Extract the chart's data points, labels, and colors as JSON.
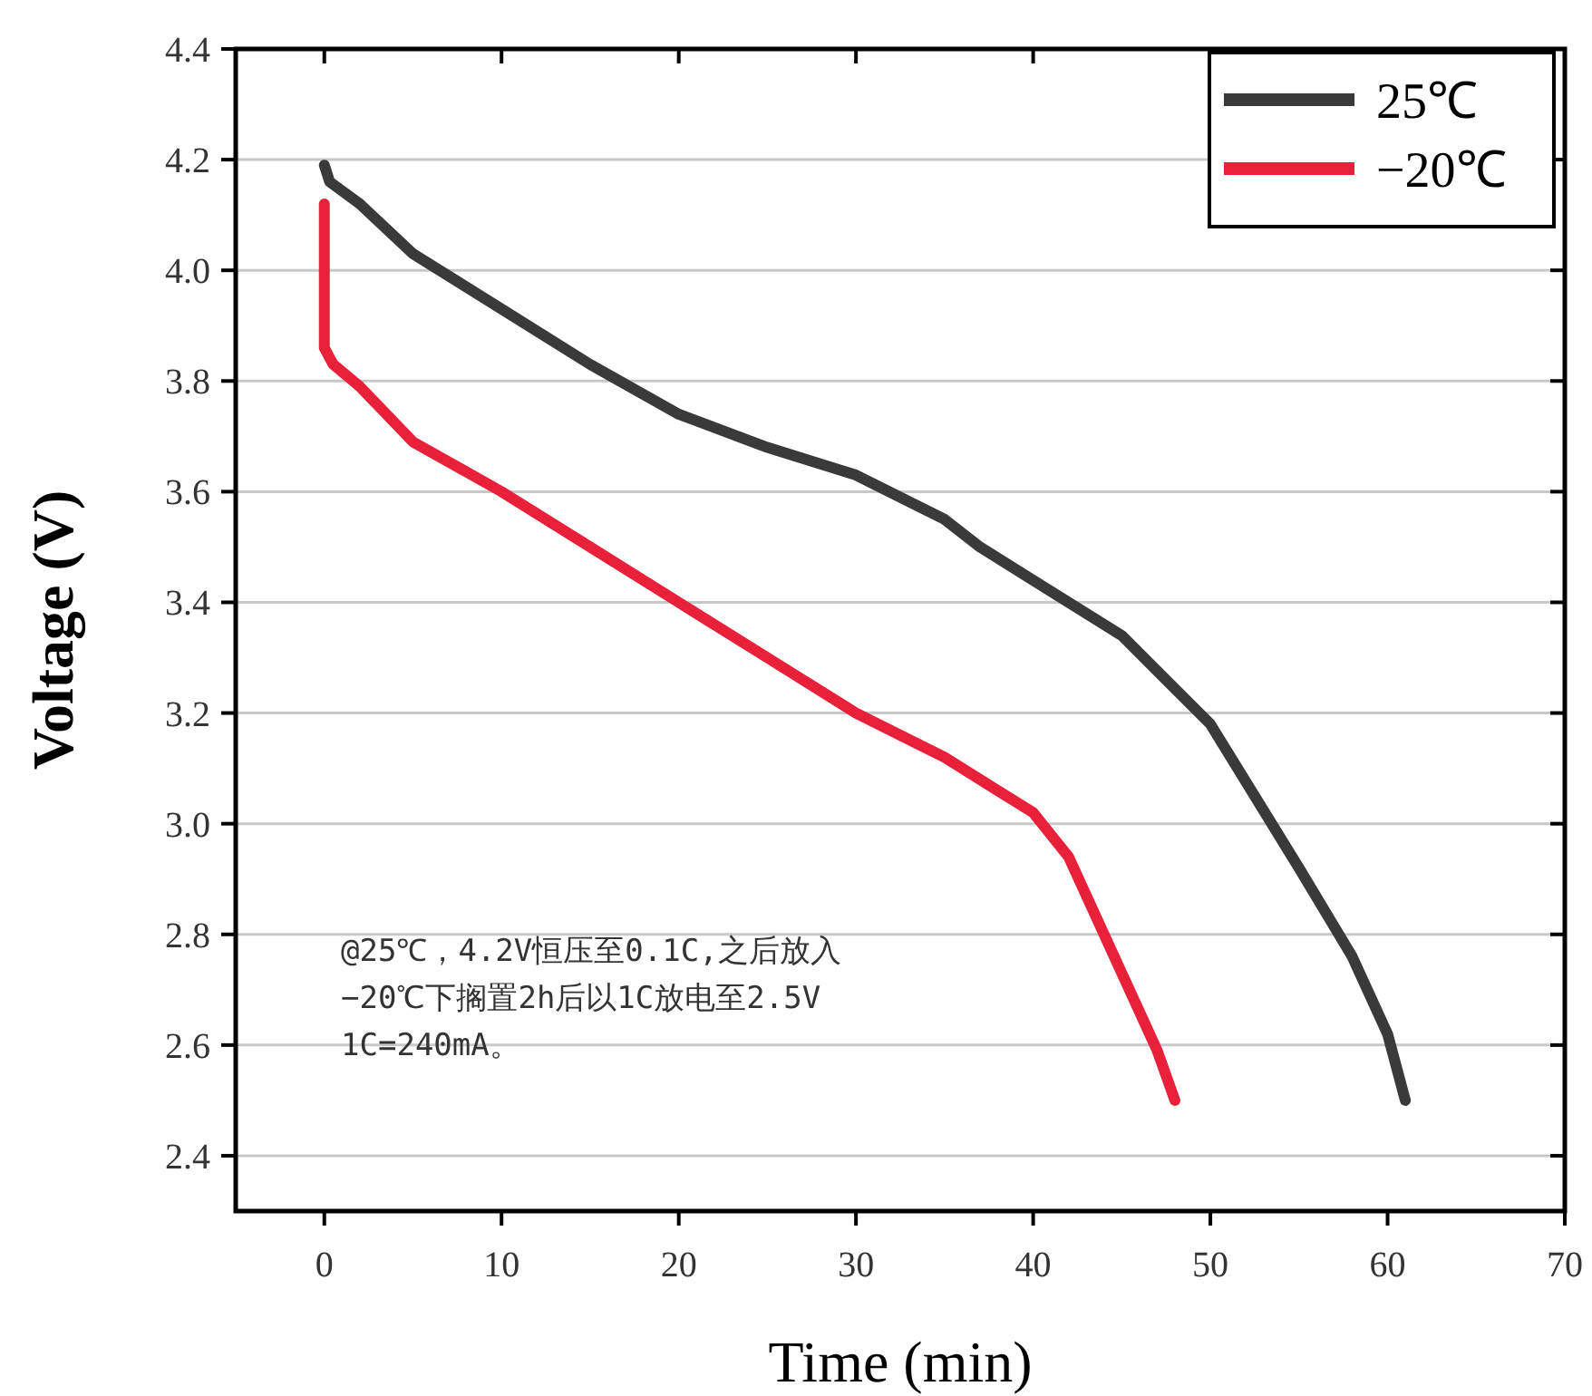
{
  "chart_data": {
    "type": "line",
    "xlabel": "Time (min)",
    "ylabel": "Voltage (V)",
    "xlim": [
      -5,
      70
    ],
    "ylim": [
      2.3,
      4.4
    ],
    "xticks": [
      0,
      10,
      20,
      30,
      40,
      50,
      60,
      70
    ],
    "yticks": [
      {
        "value": 2.4,
        "label": "2.4"
      },
      {
        "value": 2.6,
        "label": "2.6"
      },
      {
        "value": 2.8,
        "label": "2.8"
      },
      {
        "value": 3,
        "label": "3.0"
      },
      {
        "value": 3.2,
        "label": "3.2"
      },
      {
        "value": 3.4,
        "label": "3.4"
      },
      {
        "value": 3.6,
        "label": "3.6"
      },
      {
        "value": 3.8,
        "label": "3.8"
      },
      {
        "value": 4,
        "label": "4.0"
      },
      {
        "value": 4.2,
        "label": "4.2"
      },
      {
        "value": 4.4,
        "label": "4.4"
      }
    ],
    "grid": "y",
    "legend": "top right",
    "marker": "none",
    "line_style": "solid",
    "series": [
      {
        "name": "25℃",
        "color": "#3a3a3a",
        "x": [
          0,
          0.3,
          2,
          5,
          10,
          15,
          20,
          25,
          30,
          35,
          37,
          40,
          45,
          50,
          55,
          58,
          60,
          61
        ],
        "values": [
          4.19,
          4.16,
          4.12,
          4.03,
          3.93,
          3.83,
          3.74,
          3.68,
          3.63,
          3.55,
          3.5,
          3.44,
          3.34,
          3.18,
          2.92,
          2.76,
          2.62,
          2.5
        ]
      },
      {
        "name": "−20℃",
        "color": "#e8203a",
        "x": [
          0,
          0,
          0.5,
          2,
          5,
          10,
          15,
          20,
          25,
          30,
          35,
          38,
          40,
          42,
          45,
          47,
          48
        ],
        "values": [
          4.12,
          3.86,
          3.83,
          3.79,
          3.69,
          3.6,
          3.5,
          3.4,
          3.3,
          3.2,
          3.12,
          3.06,
          3.02,
          2.94,
          2.73,
          2.59,
          2.5
        ]
      }
    ],
    "annotations": [
      "@25℃，4.2V恒压至0.1C,之后放入",
      "−20℃下搁置2h后以1C放电至2.5V",
      "1C=240mA。"
    ]
  }
}
